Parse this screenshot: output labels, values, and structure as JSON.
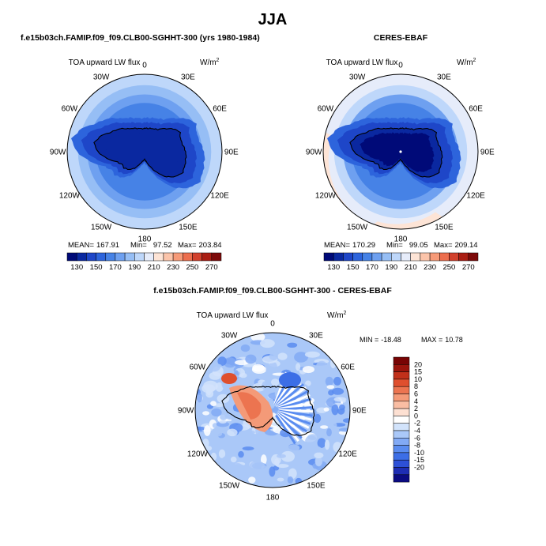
{
  "page": {
    "season_title": "JJA",
    "bottom_title": "f.e15b03ch.FAMIP.f09_f09.CLB00-SGHHT-300 - CERES-EBAF"
  },
  "colors": {
    "abs_palette": [
      "#000a78",
      "#0a28a0",
      "#1e46c8",
      "#2d64dc",
      "#4682e6",
      "#6ea0f0",
      "#96bef5",
      "#bed7fa",
      "#e6ecfa",
      "#fde4d6",
      "#fbc4aa",
      "#f69a78",
      "#ec6e4e",
      "#d2412d",
      "#aa1e14",
      "#7d0a0a"
    ],
    "diff_palette": [
      "#0b0b82",
      "#1e2db4",
      "#2d50d7",
      "#3c6ee6",
      "#5a8cf0",
      "#82aaf5",
      "#aac8f8",
      "#d2e3fb",
      "#ffffff",
      "#fde0d2",
      "#f9bda3",
      "#f49a78",
      "#ec7450",
      "#df4f2e",
      "#c1301a",
      "#9a140c",
      "#780404"
    ]
  },
  "chart_data": [
    {
      "type": "polar-contour-map",
      "title_left": "f.e15b03ch.FAMIP.f09_f09.CLB00-SGHHT-300 (yrs 1980-1984)",
      "variable_label": "TOA upward LW flux",
      "units_label": "W/m",
      "units_exp": "2",
      "lon_labels": [
        "0",
        "30E",
        "60E",
        "90E",
        "120E",
        "150E",
        "180",
        "150W",
        "120W",
        "90W",
        "60W",
        "30W"
      ],
      "stats": {
        "mean_label": "MEAN=",
        "mean": "167.91",
        "min_label": "Min=",
        "min": "97.52",
        "max_label": "Max=",
        "max": "203.84"
      },
      "colorbar_ticks": [
        "130",
        "150",
        "170",
        "190",
        "210",
        "230",
        "250",
        "270"
      ],
      "field": {
        "rings": [
          135,
          130,
          140,
          155,
          165,
          175,
          185,
          195
        ],
        "outer_peach": false
      }
    },
    {
      "type": "polar-contour-map",
      "title_right": "CERES-EBAF",
      "variable_label": "TOA upward LW flux",
      "units_label": "W/m",
      "units_exp": "2",
      "lon_labels": [
        "0",
        "30E",
        "60E",
        "90E",
        "120E",
        "150E",
        "180",
        "150W",
        "120W",
        "90W",
        "60W",
        "30W"
      ],
      "stats": {
        "mean_label": "MEAN=",
        "mean": "170.29",
        "min_label": "Min=",
        "min": "99.05",
        "max_label": "Max=",
        "max": "209.14"
      },
      "colorbar_ticks": [
        "130",
        "150",
        "170",
        "190",
        "210",
        "230",
        "250",
        "270"
      ],
      "field": {
        "rings": [
          130,
          125,
          140,
          155,
          165,
          178,
          190,
          205
        ],
        "outer_peach": true
      }
    },
    {
      "type": "polar-contour-map-difference",
      "variable_label": "TOA upward LW flux",
      "units_label": "W/m",
      "units_exp": "2",
      "lon_labels": [
        "0",
        "30E",
        "60E",
        "90E",
        "120E",
        "150E",
        "180",
        "150W",
        "120W",
        "90W",
        "60W",
        "30W"
      ],
      "stats": {
        "min_label": "MIN =",
        "min": "-18.48",
        "max_label": "MAX =",
        "max": "10.78"
      },
      "colorbar_ticks": [
        "20",
        "15",
        "10",
        "8",
        "6",
        "4",
        "2",
        "0",
        "-2",
        "-4",
        "-6",
        "-8",
        "-10",
        "-15",
        "-20"
      ]
    }
  ]
}
